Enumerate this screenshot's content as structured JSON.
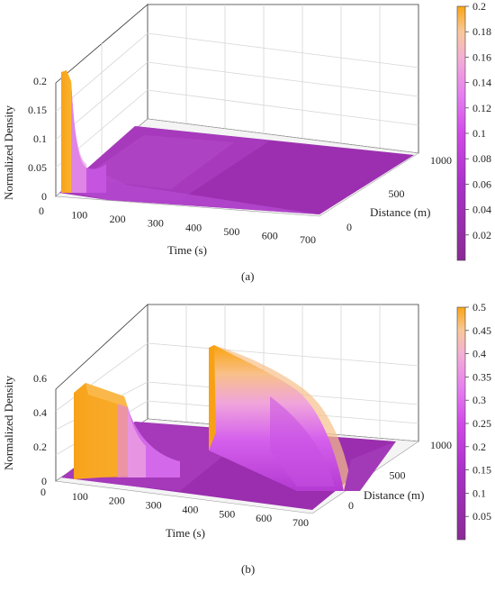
{
  "chart_data": [
    {
      "type": "surface",
      "caption": "(a)",
      "xlabel": "Time (s)",
      "ylabel": "Distance (m)",
      "zlabel": "Normalized Density",
      "xticks": [
        "0",
        "100",
        "200",
        "300",
        "400",
        "500",
        "600",
        "700"
      ],
      "yticks": [
        "0",
        "500",
        "1000"
      ],
      "zticks": [
        "0",
        "0.05",
        "0.1",
        "0.15",
        "0.2"
      ],
      "xlim": [
        0,
        700
      ],
      "ylim": [
        0,
        1000
      ],
      "zlim": [
        0,
        0.2
      ],
      "colorbar": {
        "ticks": [
          "0.02",
          "0.04",
          "0.06",
          "0.08",
          "0.1",
          "0.12",
          "0.14",
          "0.16",
          "0.18",
          "0.2"
        ],
        "range": [
          0,
          0.2
        ]
      },
      "features": [
        {
          "time_range": [
            60,
            80
          ],
          "distance_range": [
            0,
            50
          ],
          "density": 0.21
        },
        {
          "time_range": [
            80,
            700
          ],
          "distance_range": [
            0,
            1000
          ],
          "density": 0.05
        }
      ]
    },
    {
      "type": "surface",
      "caption": "(b)",
      "xlabel": "Time (s)",
      "ylabel": "Distance (m)",
      "zlabel": "Normalized Density",
      "xticks": [
        "0",
        "100",
        "200",
        "300",
        "400",
        "500",
        "600",
        "700"
      ],
      "yticks": [
        "0",
        "500",
        "1000"
      ],
      "zticks": [
        "0",
        "0.2",
        "0.4",
        "0.6"
      ],
      "xlim": [
        0,
        700
      ],
      "ylim": [
        0,
        1000
      ],
      "zlim": [
        0,
        0.6
      ],
      "colorbar": {
        "ticks": [
          "0.05",
          "0.1",
          "0.15",
          "0.2",
          "0.25",
          "0.3",
          "0.35",
          "0.4",
          "0.45",
          "0.5"
        ],
        "range": [
          0,
          0.5
        ]
      },
      "features": [
        {
          "time_range": [
            60,
            210
          ],
          "distance_range": [
            0,
            50
          ],
          "density": 0.5
        },
        {
          "time_range": [
            300,
            520
          ],
          "distance_range": [
            100,
            1000
          ],
          "density": 0.55
        },
        {
          "time_range": [
            0,
            700
          ],
          "distance_range": [
            0,
            1000
          ],
          "density": 0.1
        }
      ]
    }
  ]
}
